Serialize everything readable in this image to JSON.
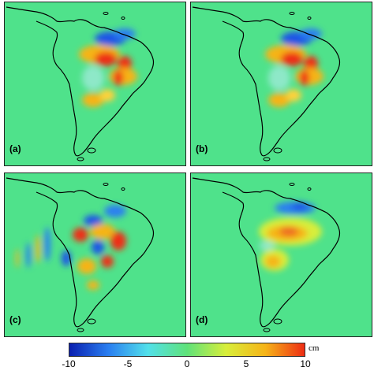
{
  "panels": [
    {
      "id": "a",
      "label": "(a)"
    },
    {
      "id": "b",
      "label": "(b)"
    },
    {
      "id": "c",
      "label": "(c)"
    },
    {
      "id": "d",
      "label": "(d)"
    }
  ],
  "colorbar": {
    "unit": "cm",
    "ticks": [
      "-10",
      "-5",
      "0",
      "5",
      "10"
    ],
    "range": [
      -10,
      10
    ],
    "colors": [
      "#0a1fb0",
      "#2a7ff0",
      "#52e0ea",
      "#5fe27a",
      "#d8ee3a",
      "#f6b418",
      "#ee2d14"
    ]
  },
  "colors": {
    "background_field": "#4fe28b",
    "coastline": "#000000"
  }
}
